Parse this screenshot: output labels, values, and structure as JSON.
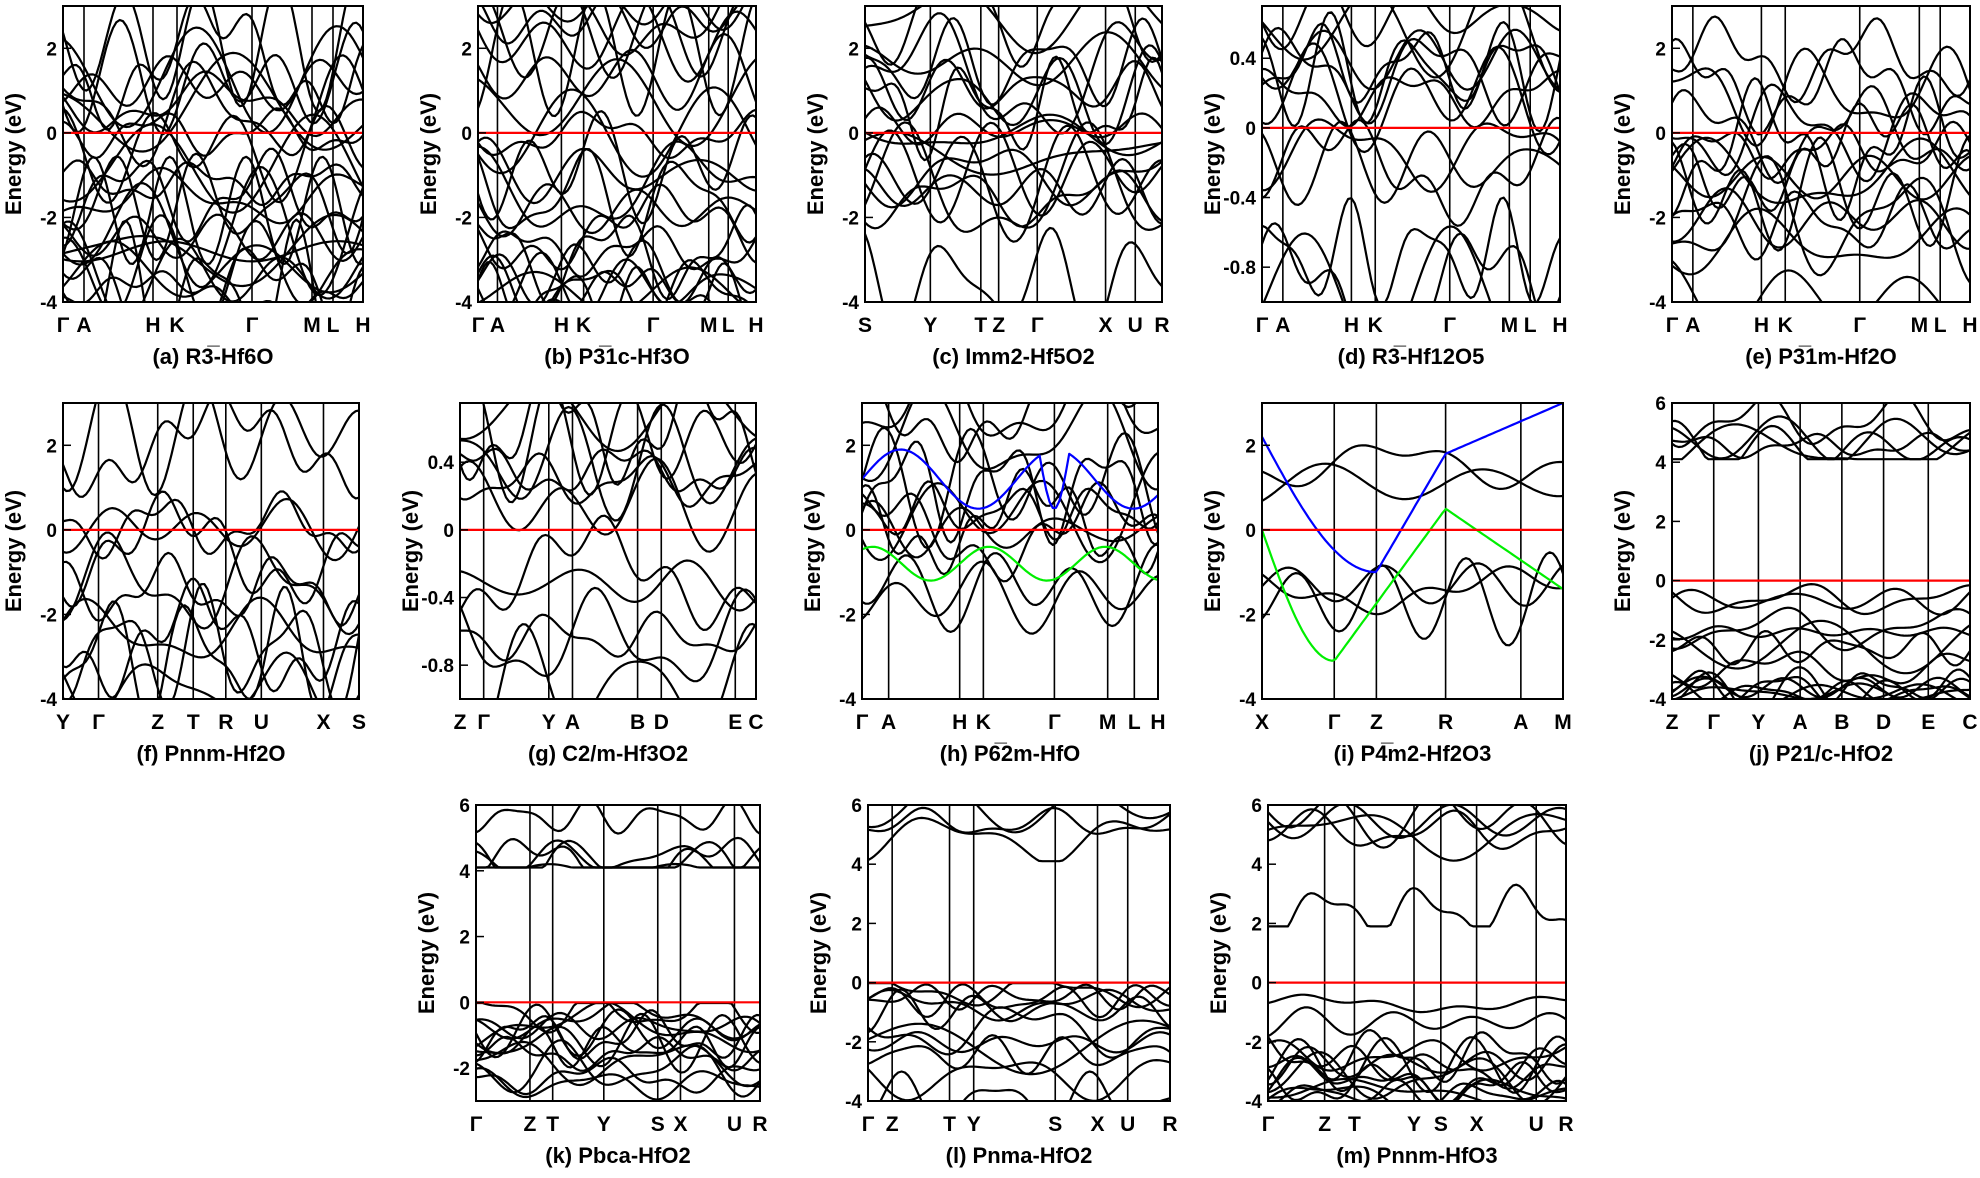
{
  "colors": {
    "band": "#000000",
    "fermi": "#ff0000",
    "highlight_blue": "#0000ff",
    "highlight_green": "#00ee00"
  },
  "chart_data": [
    {
      "type": "line",
      "ylabel": "Energy (eV)",
      "caption": "(a) R3̅-Hf6O",
      "ylim": [
        -4,
        3
      ],
      "yticks": [
        -4,
        -2,
        0,
        2
      ],
      "kpoints": [
        {
          "label": "Γ",
          "x": 0
        },
        {
          "label": "A",
          "x": 0.07
        },
        {
          "label": "H",
          "x": 0.3
        },
        {
          "label": "K",
          "x": 0.38
        },
        {
          "label": "Γ",
          "x": 0.63
        },
        {
          "label": "M",
          "x": 0.83
        },
        {
          "label": "L",
          "x": 0.9
        },
        {
          "label": "H",
          "x": 1
        }
      ],
      "fermi_level": 0,
      "band_count": 26,
      "highlight_bands": []
    },
    {
      "type": "line",
      "ylabel": "Energy (eV)",
      "caption": "(b) P3̅1c-Hf3O",
      "ylim": [
        -4,
        3
      ],
      "yticks": [
        -4,
        -2,
        0,
        2
      ],
      "kpoints": [
        {
          "label": "Γ",
          "x": 0
        },
        {
          "label": "A",
          "x": 0.07
        },
        {
          "label": "H",
          "x": 0.3
        },
        {
          "label": "K",
          "x": 0.38
        },
        {
          "label": "Γ",
          "x": 0.63
        },
        {
          "label": "M",
          "x": 0.83
        },
        {
          "label": "L",
          "x": 0.9
        },
        {
          "label": "H",
          "x": 1
        }
      ],
      "fermi_level": 0,
      "band_count": 24,
      "highlight_bands": []
    },
    {
      "type": "line",
      "ylabel": "Energy (eV)",
      "caption": "(c) Imm2-Hf5O2",
      "ylim": [
        -4,
        3
      ],
      "yticks": [
        -4,
        -2,
        0,
        2
      ],
      "kpoints": [
        {
          "label": "S",
          "x": 0
        },
        {
          "label": "Y",
          "x": 0.22
        },
        {
          "label": "T",
          "x": 0.39
        },
        {
          "label": "Z",
          "x": 0.45
        },
        {
          "label": "Γ",
          "x": 0.58
        },
        {
          "label": "X",
          "x": 0.81
        },
        {
          "label": "U",
          "x": 0.91
        },
        {
          "label": "R",
          "x": 1
        }
      ],
      "fermi_level": 0,
      "band_count": 18,
      "highlight_bands": []
    },
    {
      "type": "line",
      "ylabel": "Energy (eV)",
      "caption": "(d) R3̅-Hf12O5",
      "ylim": [
        -1,
        0.7
      ],
      "yticks": [
        -0.8,
        -0.4,
        0,
        0.4
      ],
      "kpoints": [
        {
          "label": "Γ",
          "x": 0
        },
        {
          "label": "A",
          "x": 0.07
        },
        {
          "label": "H",
          "x": 0.3
        },
        {
          "label": "K",
          "x": 0.38
        },
        {
          "label": "Γ",
          "x": 0.63
        },
        {
          "label": "M",
          "x": 0.83
        },
        {
          "label": "L",
          "x": 0.9
        },
        {
          "label": "H",
          "x": 1
        }
      ],
      "fermi_level": 0,
      "band_count": 14,
      "highlight_bands": []
    },
    {
      "type": "line",
      "ylabel": "Energy (eV)",
      "caption": "(e) P3̅1m-Hf2O",
      "ylim": [
        -4,
        3
      ],
      "yticks": [
        -4,
        -2,
        0,
        2
      ],
      "kpoints": [
        {
          "label": "Γ",
          "x": 0
        },
        {
          "label": "A",
          "x": 0.07
        },
        {
          "label": "H",
          "x": 0.3
        },
        {
          "label": "K",
          "x": 0.38
        },
        {
          "label": "Γ",
          "x": 0.63
        },
        {
          "label": "M",
          "x": 0.83
        },
        {
          "label": "L",
          "x": 0.9
        },
        {
          "label": "H",
          "x": 1
        }
      ],
      "fermi_level": 0,
      "band_count": 16,
      "highlight_bands": []
    },
    {
      "type": "line",
      "ylabel": "Energy (eV)",
      "caption": "(f) Pnnm-Hf2O",
      "ylim": [
        -4,
        3
      ],
      "yticks": [
        -4,
        -2,
        0,
        2
      ],
      "kpoints": [
        {
          "label": "Y",
          "x": 0
        },
        {
          "label": "Γ",
          "x": 0.12
        },
        {
          "label": "Z",
          "x": 0.32
        },
        {
          "label": "T",
          "x": 0.44
        },
        {
          "label": "R",
          "x": 0.55
        },
        {
          "label": "U",
          "x": 0.67
        },
        {
          "label": "X",
          "x": 0.88
        },
        {
          "label": "S",
          "x": 1
        }
      ],
      "fermi_level": 0,
      "band_count": 12,
      "highlight_bands": []
    },
    {
      "type": "line",
      "ylabel": "Energy (eV)",
      "caption": "(g) C2/m-Hf3O2",
      "ylim": [
        -1,
        0.75
      ],
      "yticks": [
        -0.8,
        -0.4,
        0,
        0.4
      ],
      "kpoints": [
        {
          "label": "Z",
          "x": 0
        },
        {
          "label": "Γ",
          "x": 0.08
        },
        {
          "label": "Y",
          "x": 0.3
        },
        {
          "label": "A",
          "x": 0.38
        },
        {
          "label": "B",
          "x": 0.6
        },
        {
          "label": "D",
          "x": 0.68
        },
        {
          "label": "E",
          "x": 0.93
        },
        {
          "label": "C",
          "x": 1
        }
      ],
      "fermi_level": 0,
      "band_count": 12,
      "highlight_bands": []
    },
    {
      "type": "line",
      "ylabel": "Energy (eV)",
      "caption": "(h) P6̅2m-HfO",
      "ylim": [
        -4,
        3
      ],
      "yticks": [
        -4,
        -2,
        0,
        2
      ],
      "kpoints": [
        {
          "label": "Γ",
          "x": 0
        },
        {
          "label": "A",
          "x": 0.09
        },
        {
          "label": "H",
          "x": 0.33
        },
        {
          "label": "K",
          "x": 0.41
        },
        {
          "label": "Γ",
          "x": 0.65
        },
        {
          "label": "M",
          "x": 0.83
        },
        {
          "label": "L",
          "x": 0.92
        },
        {
          "label": "H",
          "x": 1
        }
      ],
      "fermi_level": 0,
      "band_count": 12,
      "highlight_bands": [
        "blue",
        "green"
      ]
    },
    {
      "type": "line",
      "ylabel": "Energy (eV)",
      "caption": "(i) P4̅m2-Hf2O3",
      "ylim": [
        -4,
        3
      ],
      "yticks": [
        -4,
        -2,
        0,
        2
      ],
      "kpoints": [
        {
          "label": "X",
          "x": 0
        },
        {
          "label": "Γ",
          "x": 0.24
        },
        {
          "label": "Z",
          "x": 0.38
        },
        {
          "label": "R",
          "x": 0.61
        },
        {
          "label": "A",
          "x": 0.86
        },
        {
          "label": "M",
          "x": 1
        }
      ],
      "fermi_level": 0,
      "band_count": 5,
      "highlight_bands": [
        "blue",
        "green"
      ]
    },
    {
      "type": "line",
      "ylabel": "Energy (eV)",
      "caption": "(j) P21/c-HfO2",
      "ylim": [
        -4,
        6
      ],
      "yticks": [
        -4,
        -2,
        0,
        2,
        4,
        6
      ],
      "kpoints": [
        {
          "label": "Z",
          "x": 0
        },
        {
          "label": "Γ",
          "x": 0.14
        },
        {
          "label": "Y",
          "x": 0.29
        },
        {
          "label": "A",
          "x": 0.43
        },
        {
          "label": "B",
          "x": 0.57
        },
        {
          "label": "D",
          "x": 0.71
        },
        {
          "label": "E",
          "x": 0.86
        },
        {
          "label": "C",
          "x": 1
        }
      ],
      "fermi_level": 0,
      "band_count": 18,
      "highlight_bands": []
    },
    {
      "type": "line",
      "ylabel": "Energy (eV)",
      "caption": "(k) Pbca-HfO2",
      "ylim": [
        -3,
        6
      ],
      "yticks": [
        -2,
        0,
        2,
        4,
        6
      ],
      "kpoints": [
        {
          "label": "Γ",
          "x": 0
        },
        {
          "label": "Z",
          "x": 0.19
        },
        {
          "label": "T",
          "x": 0.27
        },
        {
          "label": "Y",
          "x": 0.45
        },
        {
          "label": "S",
          "x": 0.64
        },
        {
          "label": "X",
          "x": 0.72
        },
        {
          "label": "U",
          "x": 0.91
        },
        {
          "label": "R",
          "x": 1
        }
      ],
      "fermi_level": 0,
      "band_count": 18,
      "highlight_bands": []
    },
    {
      "type": "line",
      "ylabel": "Energy (eV)",
      "caption": "(l) Pnma-HfO2",
      "ylim": [
        -4,
        6
      ],
      "yticks": [
        -4,
        -2,
        0,
        2,
        4,
        6
      ],
      "kpoints": [
        {
          "label": "Γ",
          "x": 0
        },
        {
          "label": "Z",
          "x": 0.08
        },
        {
          "label": "T",
          "x": 0.27
        },
        {
          "label": "Y",
          "x": 0.35
        },
        {
          "label": "S",
          "x": 0.62
        },
        {
          "label": "X",
          "x": 0.76
        },
        {
          "label": "U",
          "x": 0.86
        },
        {
          "label": "R",
          "x": 1
        }
      ],
      "fermi_level": 0,
      "band_count": 14,
      "highlight_bands": []
    },
    {
      "type": "line",
      "ylabel": "Energy (eV)",
      "caption": "(m) Pnnm-HfO3",
      "ylim": [
        -4,
        6
      ],
      "yticks": [
        -4,
        -2,
        0,
        2,
        4,
        6
      ],
      "kpoints": [
        {
          "label": "Γ",
          "x": 0
        },
        {
          "label": "Z",
          "x": 0.19
        },
        {
          "label": "T",
          "x": 0.29
        },
        {
          "label": "Y",
          "x": 0.49
        },
        {
          "label": "S",
          "x": 0.58
        },
        {
          "label": "X",
          "x": 0.7
        },
        {
          "label": "U",
          "x": 0.9
        },
        {
          "label": "R",
          "x": 1
        }
      ],
      "fermi_level": 0,
      "band_count": 18,
      "highlight_bands": []
    }
  ]
}
